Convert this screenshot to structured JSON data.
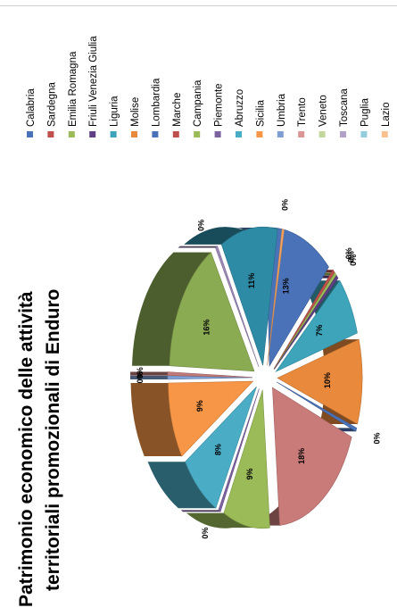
{
  "chart_data": {
    "type": "pie",
    "title_lines": [
      "Patrimonio economico delle attività",
      "territoriali promozionali di Enduro"
    ],
    "orientation": "rotated-90-ccw",
    "style": "exploded-3d",
    "legend_position": "right",
    "slices": [
      {
        "name": "Calabria",
        "value": 13,
        "label": "13%",
        "color": "#4a72b8"
      },
      {
        "name": "Sardegna",
        "value": 0,
        "label": "0%",
        "color": "#c0504d"
      },
      {
        "name": "Emilia Romagna",
        "value": 0,
        "label": "0%",
        "color": "#9bbb59"
      },
      {
        "name": "Friuli Venezia Giulia",
        "value": 0,
        "label": "0%",
        "color": "#5f3f86"
      },
      {
        "name": "Liguria",
        "value": 7,
        "label": "7%",
        "color": "#3da4ba"
      },
      {
        "name": "Molise",
        "value": 10,
        "label": "10%",
        "color": "#e8893b"
      },
      {
        "name": "Lombardia",
        "value": 0,
        "label": "0%",
        "color": "#4a72b8"
      },
      {
        "name": "Marche",
        "value": 18,
        "label": "18%",
        "color": "#c87b79"
      },
      {
        "name": "Campania",
        "value": 9,
        "label": "9%",
        "color": "#9bbb59"
      },
      {
        "name": "Piemonte",
        "value": 0,
        "label": "0%",
        "color": "#7d62a0"
      },
      {
        "name": "Abruzzo",
        "value": 8,
        "label": "8%",
        "color": "#4bacc6"
      },
      {
        "name": "Sicilia",
        "value": 9,
        "label": "9%",
        "color": "#f79646"
      },
      {
        "name": "Umbria",
        "value": 0,
        "label": "0%",
        "color": "#7f9fd4"
      },
      {
        "name": "Trento",
        "value": 0,
        "label": "0%",
        "color": "#c07a7a"
      },
      {
        "name": "Veneto",
        "value": 16,
        "label": "16%",
        "color": "#8aab52"
      },
      {
        "name": "Toscana",
        "value": 0,
        "label": "0%",
        "color": "#9b88b8"
      },
      {
        "name": "Puglia",
        "value": 11,
        "label": "11%",
        "color": "#2e8ba5"
      },
      {
        "name": "Lazio",
        "value": 0,
        "label": "0%",
        "color": "#f4a460"
      }
    ],
    "legend": [
      {
        "name": "Calabria",
        "color": "#4a72b8"
      },
      {
        "name": "Sardegna",
        "color": "#c0504d"
      },
      {
        "name": "Emilia Romagna",
        "color": "#9bbb59"
      },
      {
        "name": "Friuli Venezia Giulia",
        "color": "#5f3f86"
      },
      {
        "name": "Liguria",
        "color": "#3da4ba"
      },
      {
        "name": "Molise",
        "color": "#e8893b"
      },
      {
        "name": "Lombardia",
        "color": "#4a72b8"
      },
      {
        "name": "Marche",
        "color": "#c0504d"
      },
      {
        "name": "Campania",
        "color": "#9bbb59"
      },
      {
        "name": "Piemonte",
        "color": "#7d62a0"
      },
      {
        "name": "Abruzzo",
        "color": "#4bacc6"
      },
      {
        "name": "Sicilia",
        "color": "#f79646"
      },
      {
        "name": "Umbria",
        "color": "#7f9fd4"
      },
      {
        "name": "Trento",
        "color": "#d99694"
      },
      {
        "name": "Veneto",
        "color": "#c3d69b"
      },
      {
        "name": "Toscana",
        "color": "#b3a2c7"
      },
      {
        "name": "Puglia",
        "color": "#93cddd"
      },
      {
        "name": "Lazio",
        "color": "#fac090"
      }
    ]
  }
}
